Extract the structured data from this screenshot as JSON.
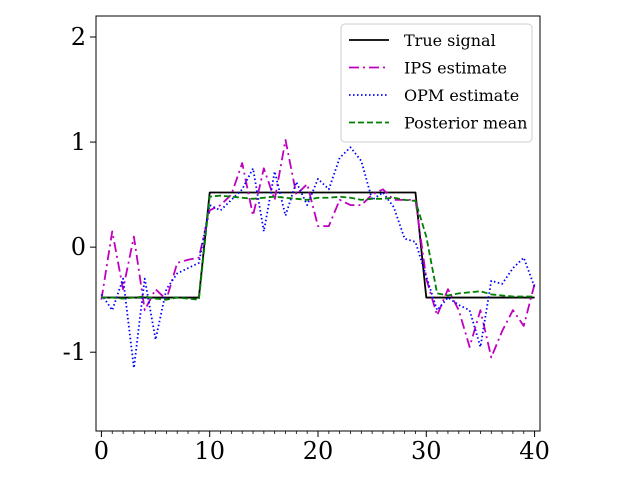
{
  "chart_data": {
    "type": "line",
    "title": "",
    "xlabel": "",
    "ylabel": "",
    "xlim": [
      -0.5,
      40.5
    ],
    "ylim": [
      -1.75,
      2.2
    ],
    "x_ticks": [
      0,
      10,
      20,
      30,
      40
    ],
    "x_tick_labels": [
      "0",
      "10",
      "20",
      "30",
      "40"
    ],
    "y_ticks": [
      -1,
      0,
      1,
      2
    ],
    "y_tick_labels": [
      "-1",
      "0",
      "1",
      "2"
    ],
    "grid": false,
    "legend_position": "top-right",
    "series": [
      {
        "name": "True signal",
        "style": "solid",
        "color": "#000000",
        "x": [
          0,
          9,
          10,
          29,
          30,
          40
        ],
        "y": [
          -0.48,
          -0.48,
          0.52,
          0.52,
          -0.48,
          -0.48
        ]
      },
      {
        "name": "IPS estimate",
        "style": "dashdot",
        "color": "#bf00bf",
        "x": [
          0,
          1,
          2,
          3,
          4,
          5,
          6,
          7,
          8,
          9,
          10,
          11,
          12,
          13,
          14,
          15,
          16,
          17,
          18,
          19,
          20,
          21,
          22,
          23,
          24,
          25,
          26,
          27,
          28,
          29,
          30,
          31,
          32,
          33,
          34,
          35,
          36,
          37,
          38,
          39,
          40
        ],
        "y": [
          -0.5,
          0.15,
          -0.4,
          0.1,
          -0.6,
          -0.4,
          -0.5,
          -0.15,
          -0.12,
          -0.1,
          0.35,
          0.4,
          0.5,
          0.8,
          0.3,
          0.75,
          0.45,
          1.02,
          0.5,
          0.6,
          0.2,
          0.2,
          0.45,
          0.4,
          0.4,
          0.5,
          0.55,
          0.45,
          0.45,
          0.45,
          -0.3,
          -0.65,
          -0.4,
          -0.6,
          -0.95,
          -0.6,
          -1.05,
          -0.8,
          -0.6,
          -0.75,
          -0.35
        ]
      },
      {
        "name": "OPM estimate",
        "style": "dotted",
        "color": "#0000ff",
        "x": [
          0,
          1,
          2,
          3,
          4,
          5,
          6,
          7,
          8,
          9,
          10,
          11,
          12,
          13,
          14,
          15,
          16,
          17,
          18,
          19,
          20,
          21,
          22,
          23,
          24,
          25,
          26,
          27,
          28,
          29,
          30,
          31,
          32,
          33,
          34,
          35,
          36,
          37,
          38,
          39,
          40
        ],
        "y": [
          -0.45,
          -0.6,
          -0.3,
          -1.15,
          -0.3,
          -0.88,
          -0.4,
          -0.25,
          -0.2,
          -0.15,
          0.4,
          0.35,
          0.45,
          0.55,
          0.75,
          0.15,
          0.72,
          0.3,
          0.62,
          0.4,
          0.65,
          0.55,
          0.85,
          0.95,
          0.82,
          0.45,
          0.52,
          0.38,
          0.08,
          0.05,
          -0.28,
          -0.6,
          -0.48,
          -0.55,
          -0.6,
          -0.95,
          -0.32,
          -0.35,
          -0.2,
          -0.1,
          -0.38
        ]
      },
      {
        "name": "Posterior mean",
        "style": "dashed",
        "color": "#008000",
        "x": [
          0,
          1,
          2,
          3,
          4,
          5,
          6,
          7,
          8,
          9,
          10,
          11,
          12,
          13,
          14,
          15,
          16,
          17,
          18,
          19,
          20,
          21,
          22,
          23,
          24,
          25,
          26,
          27,
          28,
          29,
          30,
          31,
          32,
          33,
          34,
          35,
          36,
          37,
          38,
          39,
          40
        ],
        "y": [
          -0.48,
          -0.48,
          -0.49,
          -0.48,
          -0.47,
          -0.49,
          -0.5,
          -0.48,
          -0.49,
          -0.5,
          0.48,
          0.49,
          0.48,
          0.47,
          0.46,
          0.47,
          0.48,
          0.47,
          0.46,
          0.45,
          0.47,
          0.47,
          0.48,
          0.47,
          0.45,
          0.46,
          0.46,
          0.47,
          0.45,
          0.44,
          0.1,
          -0.44,
          -0.46,
          -0.44,
          -0.43,
          -0.42,
          -0.45,
          -0.46,
          -0.47,
          -0.47,
          -0.47
        ]
      }
    ]
  }
}
